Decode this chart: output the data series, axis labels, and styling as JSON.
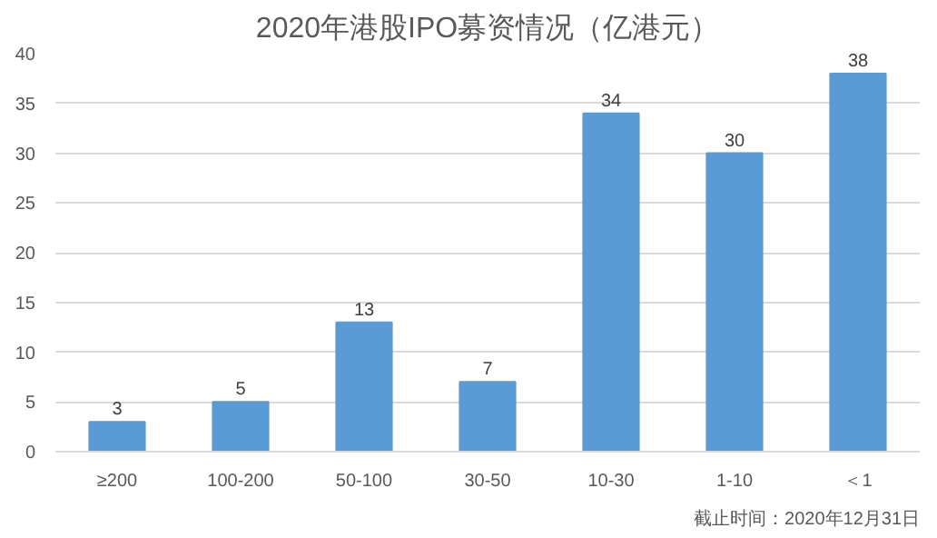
{
  "chart_data": {
    "type": "bar",
    "title": "2020年港股IPO募资情况（亿港元）",
    "categories": [
      "≥200",
      "100-200",
      "50-100",
      "30-50",
      "10-30",
      "1-10",
      "＜1"
    ],
    "values": [
      3,
      5,
      13,
      7,
      34,
      30,
      38
    ],
    "color": "#5b9bd5",
    "ylim": [
      0,
      40
    ],
    "yticks": [
      0,
      5,
      10,
      15,
      20,
      25,
      30,
      35,
      40
    ],
    "grid": "y",
    "data_labels": true,
    "annotations": [
      "截止时间：2020年12月31日"
    ]
  }
}
